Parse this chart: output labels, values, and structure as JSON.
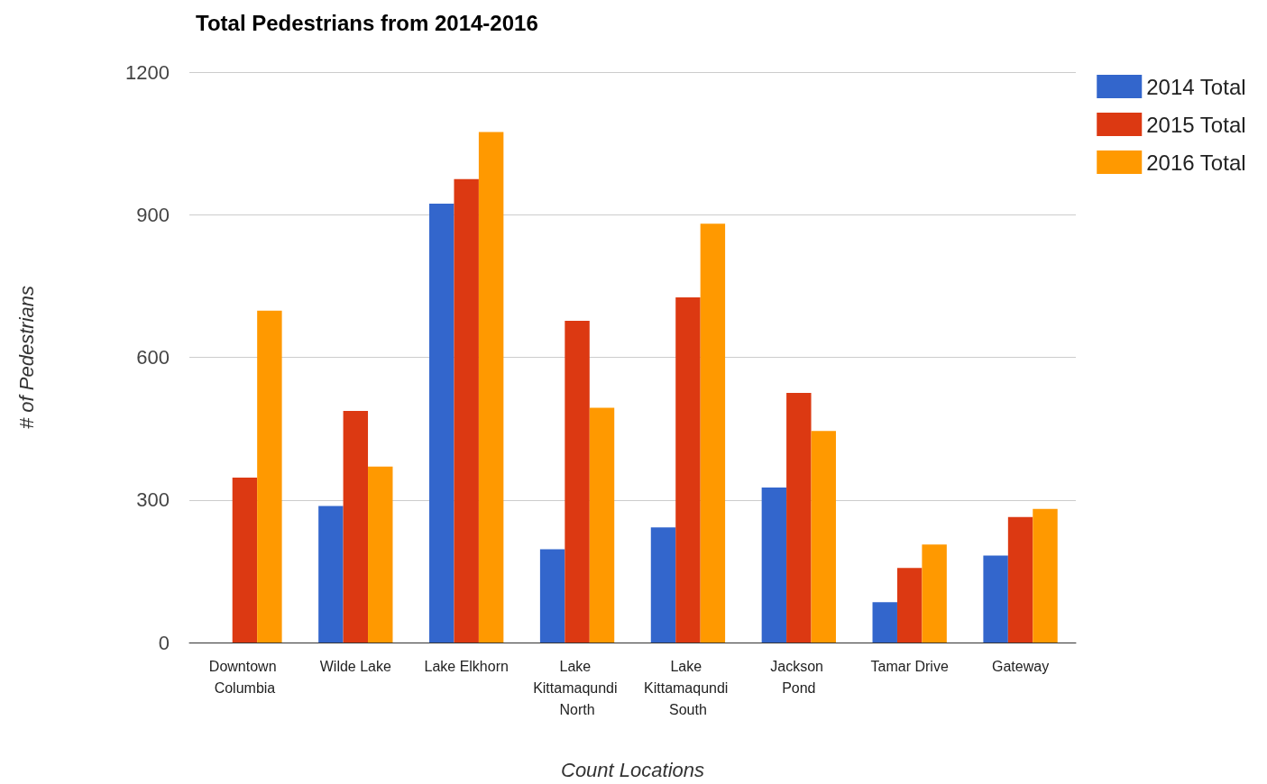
{
  "chart_data": {
    "type": "bar",
    "title": "Total Pedestrians from 2014-2016",
    "xlabel": "Count Locations",
    "ylabel": "# of Pedestrians",
    "categories": [
      "Downtown Columbia",
      "Wilde Lake",
      "Lake Elkhorn",
      "Lake Kittamaqundi North",
      "Lake Kittamaqundi South",
      "Jackson Pond",
      "Tamar Drive",
      "Gateway"
    ],
    "series": [
      {
        "name": "2014 Total",
        "color": "#3366cc",
        "values": [
          null,
          287,
          923,
          196,
          242,
          326,
          85,
          183
        ]
      },
      {
        "name": "2015 Total",
        "color": "#dc3912",
        "values": [
          347,
          487,
          975,
          677,
          726,
          525,
          157,
          264
        ]
      },
      {
        "name": "2016 Total",
        "color": "#ff9900",
        "values": [
          698,
          370,
          1074,
          494,
          881,
          445,
          206,
          281
        ]
      }
    ],
    "ylim": [
      0,
      1200
    ],
    "yticks": [
      0,
      300,
      600,
      900,
      1200
    ],
    "grid": "y",
    "legend": "top right"
  }
}
